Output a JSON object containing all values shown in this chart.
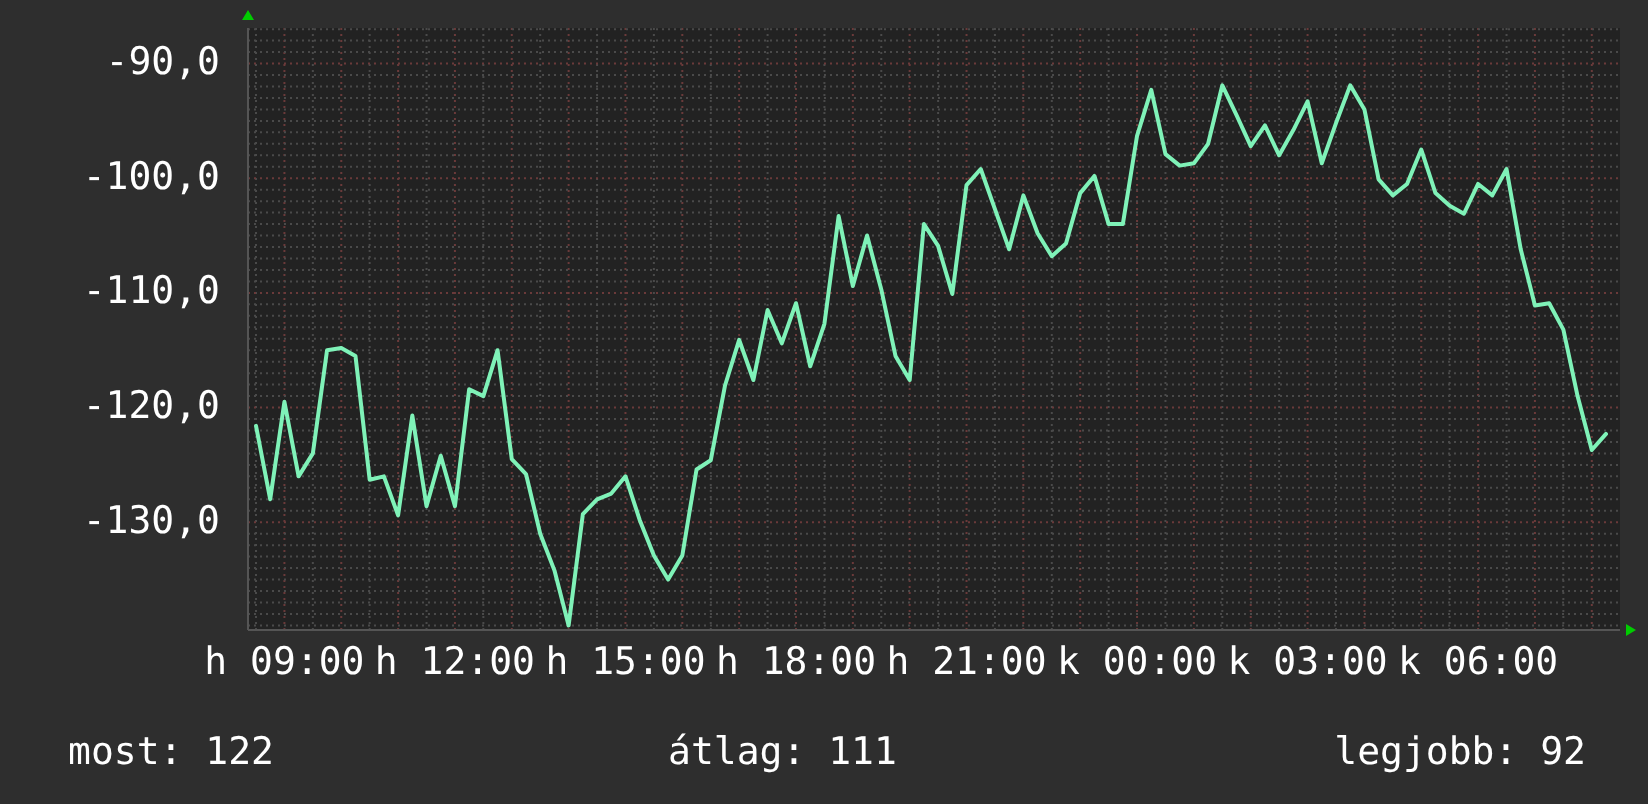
{
  "chart_data": {
    "type": "line",
    "categories": [
      null,
      null,
      "h 09:00",
      null,
      null,
      null,
      null,
      null,
      null,
      null,
      null,
      null,
      null,
      null,
      "h 12:00",
      null,
      null,
      null,
      null,
      null,
      null,
      null,
      null,
      null,
      null,
      null,
      "h 15:00",
      null,
      null,
      null,
      null,
      null,
      null,
      null,
      null,
      null,
      null,
      null,
      "h 18:00",
      null,
      null,
      null,
      null,
      null,
      null,
      null,
      null,
      null,
      null,
      null,
      "h 21:00",
      null,
      null,
      null,
      null,
      null,
      null,
      null,
      null,
      null,
      null,
      null,
      "k 00:00",
      null,
      null,
      null,
      null,
      null,
      null,
      null,
      null,
      null,
      null,
      null,
      "k 03:00",
      null,
      null,
      null,
      null,
      null,
      null,
      null,
      null,
      null,
      null,
      null,
      "k 06:00",
      null,
      null,
      null,
      null,
      null,
      null,
      null,
      null,
      null
    ],
    "series": [
      {
        "color": "#7ff2b8",
        "values": [
          -121.6,
          -128.0,
          -119.5,
          -126.0,
          -124.0,
          -115.0,
          -114.8,
          -115.5,
          -126.3,
          -126.0,
          -129.4,
          -120.7,
          -128.6,
          -124.2,
          -128.6,
          -118.4,
          -119.0,
          -115.0,
          -124.5,
          -125.8,
          -131.0,
          -134.2,
          -139.0,
          -129.3,
          -128.0,
          -127.5,
          -126.0,
          -129.8,
          -132.9,
          -135.0,
          -132.9,
          -125.4,
          -124.6,
          -118.1,
          -114.1,
          -117.6,
          -111.5,
          -114.4,
          -110.9,
          -116.4,
          -112.7,
          -103.3,
          -109.4,
          -105.0,
          -109.7,
          -115.5,
          -117.6,
          -104.0,
          -105.9,
          -110.1,
          -100.6,
          -99.2,
          -102.7,
          -106.2,
          -101.5,
          -104.8,
          -106.8,
          -105.7,
          -101.3,
          -99.8,
          -104.0,
          -104.0,
          -96.3,
          -92.3,
          -97.9,
          -98.9,
          -98.7,
          -97.0,
          -91.9,
          -94.5,
          -97.2,
          -95.4,
          -98.0,
          -95.8,
          -93.3,
          -98.7,
          -95.2,
          -91.9,
          -94.0,
          -100.1,
          -101.5,
          -100.5,
          -97.5,
          -101.3,
          -102.4,
          -103.1,
          -100.5,
          -101.5,
          -99.2,
          -106.2,
          -111.1,
          -110.9,
          -113.2,
          -119.0,
          -123.7,
          -122.3
        ]
      }
    ],
    "ylim": [
      -139.4,
      -86.9
    ],
    "yticks": [
      {
        "value": -130,
        "label": "-130,0"
      },
      {
        "value": -120,
        "label": "-120,0"
      },
      {
        "value": -110,
        "label": "-110,0"
      },
      {
        "value": -100,
        "label": "-100,0"
      },
      {
        "value": -90,
        "label": "-90,0"
      }
    ],
    "grid": true,
    "annotations": [
      "most: 122",
      "átlag: 111",
      "legjobb: 92"
    ]
  }
}
